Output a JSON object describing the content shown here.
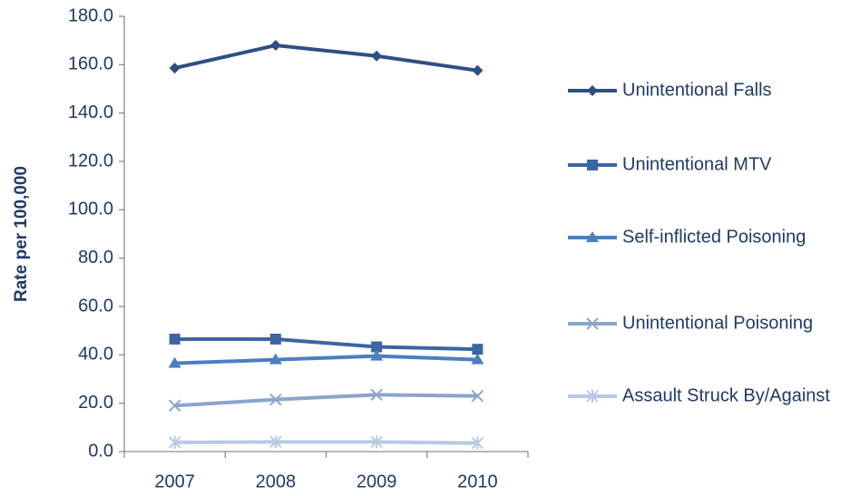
{
  "chart_data": {
    "type": "line",
    "y_label": "Rate per 100,000",
    "categories": [
      "2007",
      "2008",
      "2009",
      "2010"
    ],
    "series": [
      {
        "name": "Unintentional Falls",
        "color": "#2f4f82",
        "marker": "diamond",
        "values": [
          158.6,
          168.0,
          163.6,
          157.6
        ]
      },
      {
        "name": "Unintentional MTV",
        "color": "#3b65a3",
        "marker": "square",
        "values": [
          46.5,
          46.5,
          43.3,
          42.3
        ]
      },
      {
        "name": "Self-inflicted Poisoning",
        "color": "#4a7fc1",
        "marker": "triangle",
        "values": [
          36.5,
          38.0,
          39.5,
          38.0
        ]
      },
      {
        "name": "Unintentional Poisoning",
        "color": "#8ba5cd",
        "marker": "x",
        "values": [
          19.0,
          21.5,
          23.5,
          23.0
        ]
      },
      {
        "name": "Assault Struck By/Against",
        "color": "#b9c9e3",
        "marker": "star",
        "values": [
          3.8,
          4.0,
          4.0,
          3.5
        ]
      }
    ],
    "ylim": [
      0,
      180
    ],
    "yticks": [
      {
        "value": 0,
        "label": "0.0"
      },
      {
        "value": 20,
        "label": "20.0"
      },
      {
        "value": 40,
        "label": "40.0"
      },
      {
        "value": 60,
        "label": "60.0"
      },
      {
        "value": 80,
        "label": "80.0"
      },
      {
        "value": 100,
        "label": "100.0"
      },
      {
        "value": 120,
        "label": "120.0"
      },
      {
        "value": 140,
        "label": "140.0"
      },
      {
        "value": 160,
        "label": "160.0"
      },
      {
        "value": 180,
        "label": "180.0"
      }
    ],
    "grid": false,
    "legend": "right"
  }
}
